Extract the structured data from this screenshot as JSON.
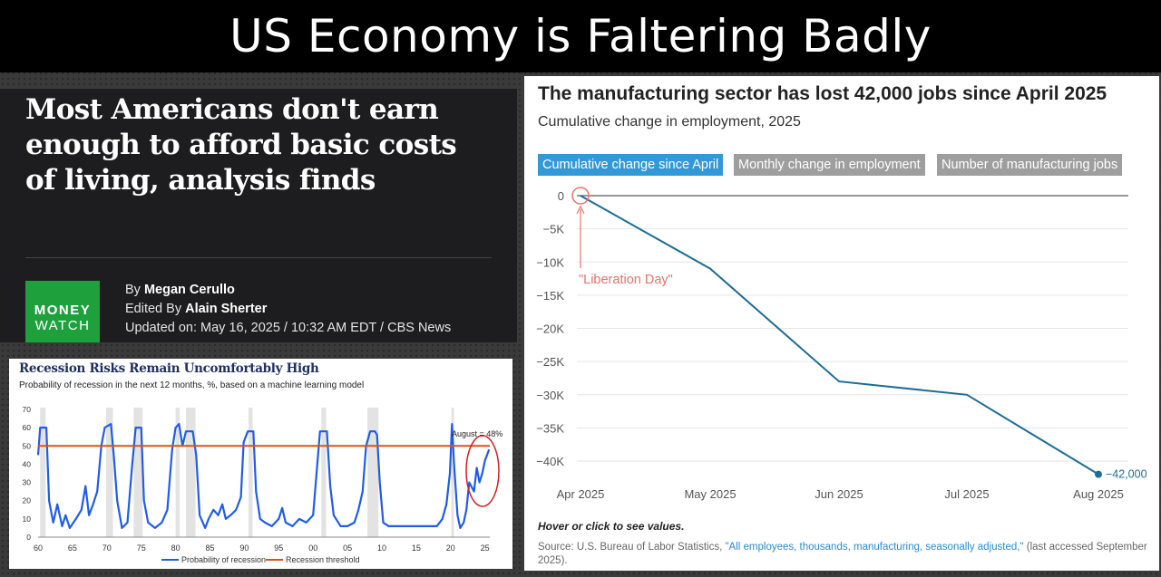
{
  "banner": {
    "title": "US Economy is Faltering Badly"
  },
  "article": {
    "headline": "Most Americans don't earn enough to afford basic costs of living, analysis finds",
    "logo_line1": "MONEY",
    "logo_line2": "WATCH",
    "by_prefix": "By",
    "author": "Megan Cerullo",
    "edited_prefix": "Edited By",
    "editor": "Alain Sherter",
    "updated": "Updated on: May 16, 2025 / 10:32 AM EDT / CBS News"
  },
  "recession": {
    "title": "Recession Risks Remain Uncomfortably High",
    "subtitle": "Probability of recession in the next 12 months, %, based on a machine learning model",
    "annotation": "August = 48%",
    "legend_prob": "Probability of recession",
    "legend_threshold": "Recession threshold",
    "line_color": "#1f5de8",
    "threshold_color": "#d9531e"
  },
  "manufacturing": {
    "title": "The manufacturing sector has lost 42,000 jobs since April 2025",
    "subtitle": "Cumulative change in employment, 2025",
    "tabs": [
      "Cumulative change since April",
      "Monthly change in employment",
      "Number of manufacturing jobs"
    ],
    "annotation": "\"Liberation Day\"",
    "end_label": "−42,000",
    "hint": "Hover or click to see values.",
    "source_prefix": "Source: U.S. Bureau of Labor Statistics, ",
    "source_link": "\"All employees, thousands, manufacturing, seasonally adjusted,\"",
    "source_suffix": " (last accessed September 2025).",
    "line_color": "#1b6d95",
    "accent_color": "#e8736b"
  },
  "chart_data": [
    {
      "type": "line",
      "title": "The manufacturing sector has lost 42,000 jobs since April 2025",
      "subtitle": "Cumulative change in employment, 2025",
      "x": [
        "Apr 2025",
        "May 2025",
        "Jun 2025",
        "Jul 2025",
        "Aug 2025"
      ],
      "y": [
        0,
        -11000,
        -28000,
        -30000,
        -42000
      ],
      "yticks": [
        "0",
        "−5K",
        "−10K",
        "−15K",
        "−20K",
        "−25K",
        "−30K",
        "−35K",
        "−40K"
      ],
      "ylim": [
        -42000,
        0
      ],
      "xlabel": "",
      "ylabel": ""
    },
    {
      "type": "line",
      "title": "Recession Risks Remain Uncomfortably High",
      "ylabel": "%",
      "ylim": [
        0,
        70
      ],
      "yticks": [
        0,
        10,
        20,
        30,
        40,
        50,
        60,
        70
      ],
      "xticks": [
        "60",
        "65",
        "70",
        "75",
        "80",
        "85",
        "90",
        "95",
        "00",
        "05",
        "10",
        "15",
        "20",
        "25"
      ],
      "xlim": [
        1960,
        2025.7
      ],
      "threshold": 50,
      "recessions": [
        [
          1960.3,
          1961.1
        ],
        [
          1969.9,
          1970.9
        ],
        [
          1973.9,
          1975.2
        ],
        [
          1980.0,
          1980.6
        ],
        [
          1981.5,
          1982.9
        ],
        [
          1990.6,
          1991.2
        ],
        [
          2001.2,
          2001.9
        ],
        [
          2007.9,
          2009.5
        ],
        [
          2020.1,
          2020.4
        ]
      ],
      "series": [
        {
          "name": "Probability of recession",
          "points": [
            [
              1960.0,
              45
            ],
            [
              1960.3,
              60
            ],
            [
              1961.2,
              60
            ],
            [
              1961.6,
              20
            ],
            [
              1962.2,
              8
            ],
            [
              1962.8,
              18
            ],
            [
              1963.5,
              6
            ],
            [
              1964.0,
              12
            ],
            [
              1964.6,
              5
            ],
            [
              1965.5,
              10
            ],
            [
              1966.3,
              15
            ],
            [
              1966.9,
              28
            ],
            [
              1967.4,
              12
            ],
            [
              1968.0,
              18
            ],
            [
              1968.6,
              25
            ],
            [
              1969.2,
              50
            ],
            [
              1969.7,
              60
            ],
            [
              1970.6,
              62
            ],
            [
              1971.0,
              45
            ],
            [
              1971.5,
              20
            ],
            [
              1972.2,
              5
            ],
            [
              1973.0,
              8
            ],
            [
              1973.7,
              40
            ],
            [
              1974.2,
              60
            ],
            [
              1975.0,
              60
            ],
            [
              1975.4,
              20
            ],
            [
              1976.0,
              8
            ],
            [
              1977.0,
              5
            ],
            [
              1978.0,
              8
            ],
            [
              1978.8,
              15
            ],
            [
              1979.5,
              48
            ],
            [
              1980.0,
              60
            ],
            [
              1980.5,
              62
            ],
            [
              1981.0,
              50
            ],
            [
              1981.5,
              58
            ],
            [
              1982.5,
              58
            ],
            [
              1983.0,
              45
            ],
            [
              1983.5,
              12
            ],
            [
              1984.3,
              5
            ],
            [
              1984.8,
              10
            ],
            [
              1985.5,
              15
            ],
            [
              1986.2,
              12
            ],
            [
              1986.8,
              18
            ],
            [
              1987.3,
              10
            ],
            [
              1988.0,
              12
            ],
            [
              1988.8,
              15
            ],
            [
              1989.5,
              22
            ],
            [
              1989.9,
              52
            ],
            [
              1990.5,
              58
            ],
            [
              1991.3,
              58
            ],
            [
              1991.7,
              25
            ],
            [
              1992.3,
              10
            ],
            [
              1993.0,
              8
            ],
            [
              1994.0,
              6
            ],
            [
              1995.0,
              10
            ],
            [
              1995.5,
              16
            ],
            [
              1996.0,
              8
            ],
            [
              1997.0,
              6
            ],
            [
              1998.0,
              10
            ],
            [
              1999.0,
              8
            ],
            [
              2000.0,
              12
            ],
            [
              2000.5,
              35
            ],
            [
              2001.0,
              58
            ],
            [
              2002.0,
              58
            ],
            [
              2002.5,
              28
            ],
            [
              2003.0,
              12
            ],
            [
              2004.0,
              6
            ],
            [
              2005.0,
              6
            ],
            [
              2006.0,
              8
            ],
            [
              2006.6,
              15
            ],
            [
              2007.2,
              25
            ],
            [
              2007.7,
              50
            ],
            [
              2008.3,
              58
            ],
            [
              2009.0,
              58
            ],
            [
              2009.3,
              56
            ],
            [
              2009.7,
              30
            ],
            [
              2010.2,
              8
            ],
            [
              2011.0,
              6
            ],
            [
              2012.0,
              6
            ],
            [
              2013.0,
              6
            ],
            [
              2014.0,
              6
            ],
            [
              2015.0,
              6
            ],
            [
              2016.0,
              6
            ],
            [
              2017.0,
              6
            ],
            [
              2018.0,
              6
            ],
            [
              2018.8,
              10
            ],
            [
              2019.4,
              18
            ],
            [
              2019.9,
              35
            ],
            [
              2020.2,
              62
            ],
            [
              2020.5,
              40
            ],
            [
              2021.0,
              12
            ],
            [
              2021.4,
              5
            ],
            [
              2021.9,
              8
            ],
            [
              2022.3,
              15
            ],
            [
              2022.7,
              30
            ],
            [
              2023.0,
              28
            ],
            [
              2023.4,
              25
            ],
            [
              2023.8,
              38
            ],
            [
              2024.2,
              30
            ],
            [
              2024.6,
              35
            ],
            [
              2025.0,
              42
            ],
            [
              2025.6,
              48
            ]
          ]
        },
        {
          "name": "Recession threshold",
          "points": [
            [
              1960.0,
              50
            ],
            [
              2025.7,
              50
            ]
          ]
        }
      ]
    }
  ]
}
